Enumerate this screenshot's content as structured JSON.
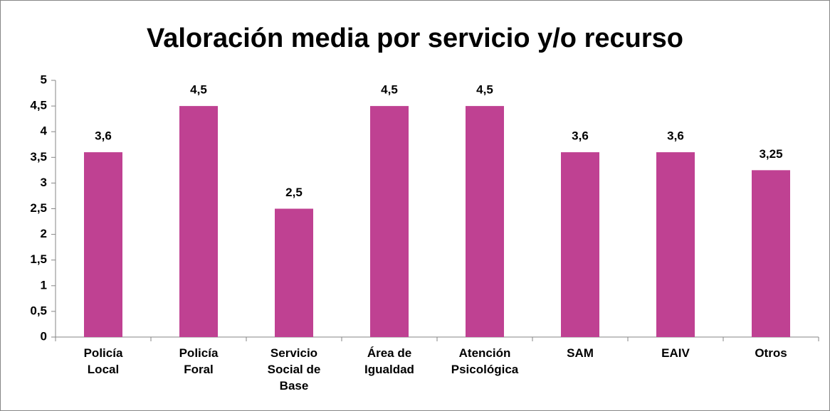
{
  "chart_data": {
    "type": "bar",
    "title": "Valoración media por servicio y/o recurso",
    "categories": [
      "Policía\nLocal",
      "Policía\nForal",
      "Servicio\nSocial de\nBase",
      "Área de\nIgualdad",
      "Atención\nPsicológica",
      "SAM",
      "EAIV",
      "Otros"
    ],
    "values": [
      3.6,
      4.5,
      2.5,
      4.5,
      4.5,
      3.6,
      3.6,
      3.25
    ],
    "value_labels": [
      "3,6",
      "4,5",
      "2,5",
      "4,5",
      "4,5",
      "3,6",
      "3,6",
      "3,25"
    ],
    "color": "#bf4192",
    "ylim": [
      0,
      5
    ],
    "yticks": [
      0,
      {
        "value": 0.5,
        "label": "0,5"
      },
      1,
      {
        "value": 1.5,
        "label": "1,5"
      },
      2,
      {
        "value": 2.5,
        "label": "2,5"
      },
      3,
      {
        "value": 3.5,
        "label": "3,5"
      },
      4,
      {
        "value": 4.5,
        "label": "4,5"
      },
      5
    ],
    "grid": false
  }
}
